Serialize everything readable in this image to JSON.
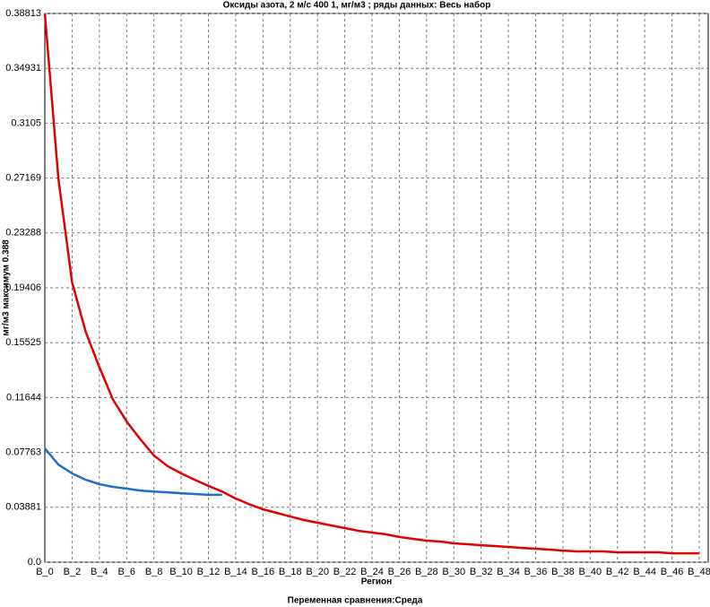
{
  "chart_data": {
    "type": "line",
    "title": "Оксиды азота, 2 м/с 400 1,  мг/м3  ; ряды данных: Весь набор",
    "y_label": "мг/м3  максимум 0.388",
    "x_label": "Регион",
    "footer": "Переменная сравнения:Среда",
    "categories": [
      "B_0",
      null,
      "B_2",
      null,
      "B_4",
      null,
      "B_6",
      null,
      "B_8",
      null,
      "B_10",
      null,
      "B_12",
      null,
      "B_14",
      null,
      "B_16",
      null,
      "B_18",
      null,
      "B_20",
      null,
      "B_22",
      null,
      "B_24",
      null,
      "B_26",
      null,
      "B_28",
      null,
      "B_30",
      null,
      "B_32",
      null,
      "B_34",
      null,
      "B_36",
      null,
      "B_38",
      null,
      "B_40",
      null,
      "B_42",
      null,
      "B_44",
      null,
      "B_46",
      null,
      "B_48"
    ],
    "series": [
      {
        "color": "#e00000",
        "values": [
          0.388,
          0.271,
          0.198,
          0.163,
          0.138,
          0.115,
          0.0995,
          0.087,
          0.0755,
          0.068,
          0.0628,
          0.0583,
          0.054,
          0.05,
          0.045,
          0.041,
          0.0374,
          0.0349,
          0.0323,
          0.0298,
          0.0279,
          0.026,
          0.0241,
          0.0222,
          0.0209,
          0.0197,
          0.0178,
          0.0165,
          0.0152,
          0.0146,
          0.0133,
          0.0127,
          0.012,
          0.0114,
          0.0108,
          0.0101,
          0.0095,
          0.0089,
          0.0082,
          0.0076,
          0.0076,
          0.0076,
          0.007,
          0.007,
          0.007,
          0.007,
          0.0063,
          0.0063,
          0.0063
        ]
      },
      {
        "color": "#1e6fc8",
        "values": [
          0.0805,
          0.069,
          0.0628,
          0.0583,
          0.0552,
          0.0533,
          0.052,
          0.0507,
          0.05,
          0.0494,
          0.0488,
          0.0482,
          0.0476,
          0.0476,
          null,
          null,
          null,
          null,
          null,
          null,
          null,
          null,
          null,
          null,
          null,
          null,
          null,
          null,
          null,
          null,
          null,
          null,
          null,
          null,
          null,
          null,
          null,
          null,
          null,
          null,
          null,
          null,
          null,
          null,
          null,
          null,
          null,
          null,
          null
        ]
      }
    ],
    "ylim": [
      0,
      0.38813
    ],
    "yticks": [
      {
        "value": 0,
        "label": "0.0"
      },
      0.03881,
      0.07763,
      0.11644,
      0.15525,
      0.19406,
      0.23288,
      0.27169,
      0.3105,
      0.34931,
      0.38813
    ],
    "grid": true
  }
}
